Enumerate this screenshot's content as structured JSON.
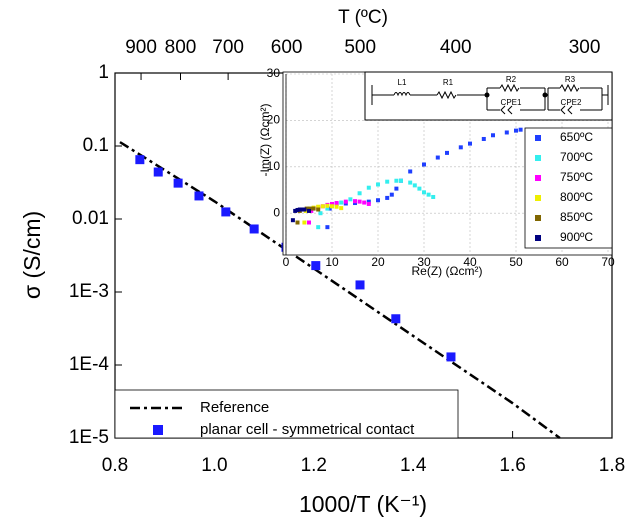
{
  "chart_data": [
    {
      "type": "line",
      "xlabel": "1000/T (K⁻¹)",
      "ylabel": "σ (S/cm)",
      "x2label": "T (ºC)",
      "xlim": [
        0.8,
        1.8
      ],
      "xticks": [
        0.8,
        {
          "value": 1,
          "label": "1.0"
        },
        1.2,
        1.4,
        1.6,
        1.8
      ],
      "x2ticks": [
        {
          "value": 0.8524,
          "label": "900"
        },
        {
          "value": 0.9318,
          "label": "800"
        },
        {
          "value": 1.0276,
          "label": "700"
        },
        {
          "value": 1.1453,
          "label": "600"
        },
        {
          "value": 1.2934,
          "label": "500"
        },
        {
          "value": 1.4856,
          "label": "400"
        },
        {
          "value": 1.7448,
          "label": "300"
        }
      ],
      "yscale": "log",
      "ylim": [
        1e-05,
        1
      ],
      "yticks": [
        {
          "value": 1e-05,
          "label": "1E-5"
        },
        {
          "value": 0.0001,
          "label": "1E-4"
        },
        {
          "value": 0.001,
          "label": "1E-3"
        },
        0.01,
        0.1,
        1
      ],
      "legend": "lower left",
      "series": [
        {
          "name": "Reference",
          "type": "line",
          "color": "#000000",
          "x": [
            0.81,
            1.0,
            1.2,
            1.4,
            1.6,
            1.695
          ],
          "values": [
            0.113,
            0.0175,
            0.0021,
            0.00025,
            3e-05,
            1e-05
          ]
        },
        {
          "name": "planar cell - symmetrical contact",
          "type": "scatter",
          "color": "#1a1aff",
          "x": [
            0.85,
            0.887,
            0.927,
            0.969,
            1.023,
            1.08,
            1.144,
            1.204,
            1.293,
            1.365,
            1.476
          ],
          "values": [
            0.065,
            0.044,
            0.031,
            0.0207,
            0.0125,
            0.0073,
            0.0041,
            0.0023,
            0.00125,
            0.00043,
            0.000129
          ]
        }
      ]
    },
    {
      "type": "scatter",
      "xlabel": "Re(Z) (Ωcm²)",
      "ylabel": "-Im(Z) (Ωcm²)",
      "xlim": [
        0,
        70
      ],
      "xticks": [
        0,
        10,
        20,
        30,
        40,
        50,
        60,
        70
      ],
      "ylim": [
        -9,
        30
      ],
      "yticks": [
        0,
        10,
        20,
        30
      ],
      "grid": true,
      "legend": "right",
      "annotations": [
        "L1",
        "R1",
        "R2",
        "CPE1",
        "R3",
        "CPE2"
      ],
      "series": [
        {
          "name": "650ºC",
          "color": "#1f3fff",
          "x": [
            9,
            9.5,
            11,
            13,
            15,
            18,
            20,
            22,
            23,
            24,
            25,
            27,
            30,
            33,
            35,
            38,
            40,
            43,
            45,
            48,
            50,
            51
          ],
          "values": [
            -3,
            1,
            2,
            2.1,
            2.2,
            2.5,
            2.8,
            3.3,
            4,
            5.3,
            7,
            9,
            10.5,
            12,
            13,
            14.2,
            15,
            16,
            16.8,
            17.4,
            17.8,
            18
          ]
        },
        {
          "name": "700ºC",
          "color": "#33eeee",
          "x": [
            7,
            7.5,
            9,
            10,
            12,
            14,
            16,
            18,
            20,
            22,
            24,
            25,
            27,
            28,
            29,
            30,
            31,
            32
          ],
          "values": [
            -3,
            0,
            1,
            1.5,
            2.3,
            3,
            4.3,
            5.5,
            6.2,
            6.8,
            7,
            7,
            6.6,
            6,
            5.3,
            4.5,
            4,
            3.5
          ]
        },
        {
          "name": "750ºC",
          "color": "#ff00ff",
          "x": [
            5,
            5.5,
            7,
            8,
            9,
            10,
            11,
            13,
            15,
            16,
            17,
            18
          ],
          "values": [
            -2,
            0.5,
            1.2,
            1.5,
            1.8,
            2,
            2.2,
            2.5,
            2.6,
            2.5,
            2.3,
            2
          ]
        },
        {
          "name": "800ºC",
          "color": "#eeee00",
          "x": [
            4,
            4.3,
            5,
            6,
            7,
            8,
            9,
            10,
            11,
            12
          ],
          "values": [
            -2,
            0.5,
            1,
            1.2,
            1.4,
            1.5,
            1.6,
            1.5,
            1.4,
            1.1
          ]
        },
        {
          "name": "850ºC",
          "color": "#806600",
          "x": [
            2.5,
            3,
            3.8,
            4.5,
            5.2,
            6,
            7
          ],
          "values": [
            -2,
            0.5,
            0.8,
            1,
            1,
            1,
            0.8
          ]
        },
        {
          "name": "900ºC",
          "color": "#000080",
          "x": [
            1.5,
            2,
            2.5,
            3,
            3.5,
            4,
            5
          ],
          "values": [
            -1.5,
            0.5,
            0.7,
            0.8,
            0.8,
            0.8,
            0.5
          ]
        }
      ]
    }
  ]
}
